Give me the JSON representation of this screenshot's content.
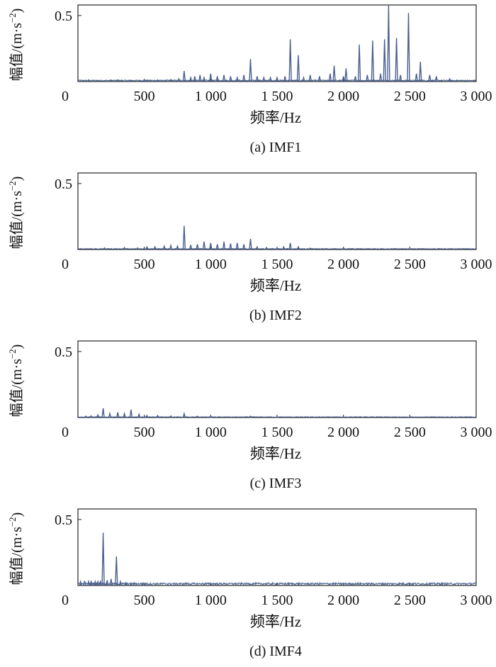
{
  "series_color": "#4a6090",
  "chart_data": [
    {
      "type": "line",
      "caption": "(a) IMF1",
      "xlabel": "频率/Hz",
      "ylabel": "幅值/(m·s",
      "ylabel_sup": "−2",
      "ylabel_close": ")",
      "xlim": [
        0,
        3000
      ],
      "ylim": [
        0,
        0.58
      ],
      "x_ticks": [
        0,
        500,
        1000,
        1500,
        2000,
        2500,
        3000
      ],
      "x_tick_labels": [
        "0",
        "500",
        "1 000",
        "1 500",
        "2 000",
        "2 500",
        "3 000"
      ],
      "y_ticks": [
        0.5
      ],
      "y_tick_labels": [
        "0.5"
      ],
      "noise_floor": 0.012,
      "peaks": [
        [
          80,
          0.012
        ],
        [
          250,
          0.01
        ],
        [
          300,
          0.012
        ],
        [
          390,
          0.01
        ],
        [
          500,
          0.01
        ],
        [
          600,
          0.012
        ],
        [
          700,
          0.014
        ],
        [
          760,
          0.02
        ],
        [
          800,
          0.08
        ],
        [
          850,
          0.03
        ],
        [
          880,
          0.04
        ],
        [
          920,
          0.05
        ],
        [
          950,
          0.03
        ],
        [
          1000,
          0.06
        ],
        [
          1050,
          0.04
        ],
        [
          1100,
          0.05
        ],
        [
          1150,
          0.04
        ],
        [
          1200,
          0.03
        ],
        [
          1250,
          0.05
        ],
        [
          1300,
          0.17
        ],
        [
          1350,
          0.04
        ],
        [
          1400,
          0.03
        ],
        [
          1450,
          0.03
        ],
        [
          1500,
          0.03
        ],
        [
          1560,
          0.04
        ],
        [
          1600,
          0.32
        ],
        [
          1660,
          0.2
        ],
        [
          1700,
          0.03
        ],
        [
          1750,
          0.05
        ],
        [
          1820,
          0.04
        ],
        [
          1900,
          0.06
        ],
        [
          1930,
          0.12
        ],
        [
          2000,
          0.04
        ],
        [
          2020,
          0.1
        ],
        [
          2090,
          0.04
        ],
        [
          2120,
          0.28
        ],
        [
          2180,
          0.05
        ],
        [
          2220,
          0.31
        ],
        [
          2280,
          0.06
        ],
        [
          2310,
          0.32
        ],
        [
          2340,
          0.58
        ],
        [
          2400,
          0.33
        ],
        [
          2430,
          0.05
        ],
        [
          2490,
          0.52
        ],
        [
          2550,
          0.06
        ],
        [
          2580,
          0.15
        ],
        [
          2650,
          0.05
        ],
        [
          2700,
          0.04
        ],
        [
          2800,
          0.02
        ]
      ]
    },
    {
      "type": "line",
      "caption": "(b) IMF2",
      "xlabel": "频率/Hz",
      "ylabel": "幅值/(m·s",
      "ylabel_sup": "−2",
      "ylabel_close": ")",
      "xlim": [
        0,
        3000
      ],
      "ylim": [
        0,
        0.58
      ],
      "x_ticks": [
        0,
        500,
        1000,
        1500,
        2000,
        2500,
        3000
      ],
      "x_tick_labels": [
        "0",
        "500",
        "1 000",
        "1 500",
        "2 000",
        "2 500",
        "3 000"
      ],
      "y_ticks": [
        0.5
      ],
      "y_tick_labels": [
        "0.5"
      ],
      "noise_floor": 0.008,
      "peaks": [
        [
          200,
          0.012
        ],
        [
          350,
          0.015
        ],
        [
          450,
          0.012
        ],
        [
          520,
          0.02
        ],
        [
          580,
          0.02
        ],
        [
          650,
          0.025
        ],
        [
          700,
          0.03
        ],
        [
          750,
          0.025
        ],
        [
          800,
          0.18
        ],
        [
          850,
          0.035
        ],
        [
          900,
          0.04
        ],
        [
          950,
          0.06
        ],
        [
          1000,
          0.05
        ],
        [
          1050,
          0.04
        ],
        [
          1100,
          0.06
        ],
        [
          1150,
          0.045
        ],
        [
          1200,
          0.05
        ],
        [
          1250,
          0.04
        ],
        [
          1300,
          0.08
        ],
        [
          1350,
          0.02
        ],
        [
          1420,
          0.015
        ],
        [
          1500,
          0.01
        ],
        [
          1550,
          0.02
        ],
        [
          1600,
          0.05
        ],
        [
          1660,
          0.02
        ],
        [
          1750,
          0.01
        ],
        [
          2000,
          0.008
        ],
        [
          2500,
          0.006
        ]
      ]
    },
    {
      "type": "line",
      "caption": "(c) IMF3",
      "xlabel": "频率/Hz",
      "ylabel": "幅值/(m·s",
      "ylabel_sup": "−2",
      "ylabel_close": ")",
      "xlim": [
        0,
        3000
      ],
      "ylim": [
        0,
        0.58
      ],
      "x_ticks": [
        0,
        500,
        1000,
        1500,
        2000,
        2500,
        3000
      ],
      "x_tick_labels": [
        "0",
        "500",
        "1 000",
        "1 500",
        "2 000",
        "2 500",
        "3 000"
      ],
      "y_ticks": [
        0.5
      ],
      "y_tick_labels": [
        "0.5"
      ],
      "noise_floor": 0.006,
      "peaks": [
        [
          60,
          0.01
        ],
        [
          100,
          0.012
        ],
        [
          150,
          0.02
        ],
        [
          190,
          0.07
        ],
        [
          240,
          0.03
        ],
        [
          300,
          0.04
        ],
        [
          350,
          0.03
        ],
        [
          400,
          0.06
        ],
        [
          460,
          0.025
        ],
        [
          520,
          0.015
        ],
        [
          600,
          0.015
        ],
        [
          700,
          0.012
        ],
        [
          800,
          0.03
        ],
        [
          900,
          0.01
        ],
        [
          1000,
          0.008
        ],
        [
          1300,
          0.01
        ],
        [
          1500,
          0.005
        ]
      ]
    },
    {
      "type": "line",
      "caption": "(d) IMF4",
      "xlabel": "频率/Hz",
      "ylabel": "幅值/(m·s",
      "ylabel_sup": "−2",
      "ylabel_close": ")",
      "xlim": [
        0,
        3000
      ],
      "ylim": [
        0,
        0.58
      ],
      "x_ticks": [
        0,
        500,
        1000,
        1500,
        2000,
        2500,
        3000
      ],
      "x_tick_labels": [
        "0",
        "500",
        "1 000",
        "1 500",
        "2 000",
        "2 500",
        "3 000"
      ],
      "y_ticks": [
        0.5
      ],
      "y_tick_labels": [
        "0.5"
      ],
      "noise_floor": 0.02,
      "peaks": [
        [
          20,
          0.03
        ],
        [
          50,
          0.035
        ],
        [
          80,
          0.03
        ],
        [
          100,
          0.03
        ],
        [
          130,
          0.03
        ],
        [
          150,
          0.03
        ],
        [
          170,
          0.03
        ],
        [
          190,
          0.4
        ],
        [
          220,
          0.04
        ],
        [
          250,
          0.05
        ],
        [
          290,
          0.22
        ],
        [
          320,
          0.03
        ],
        [
          360,
          0.02
        ],
        [
          400,
          0.015
        ],
        [
          500,
          0.008
        ],
        [
          700,
          0.005
        ]
      ]
    }
  ]
}
